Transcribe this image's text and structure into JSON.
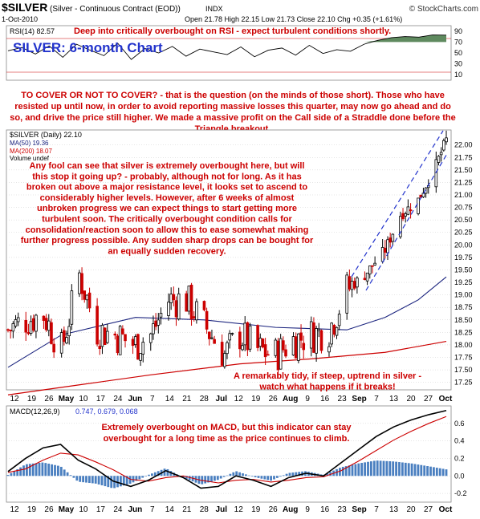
{
  "header": {
    "symbol": "$SILVER",
    "name": "(Silver - Continuous Contract (EOD))",
    "exchange": "INDX",
    "date": "1-Oct-2010",
    "ohlc": "Open 21.78  High 22.15  Low 21.73  Close 22.10  Chg +0.35 (+1.61%)",
    "brand": "© StockCharts.com"
  },
  "colors": {
    "up": "#000000",
    "down": "#cc0000",
    "ma50": "#1a237e",
    "ma200": "#cc0000",
    "channel": "#2233cc",
    "annotation_red": "#cc0000",
    "annotation_blue": "#2233cc",
    "rsi_fill": "#5f8a5f",
    "histogram": "#4a7fc0",
    "grid": "#cccccc"
  },
  "rsi_panel": {
    "label": "RSI(14) 82.57",
    "annotation": "Deep into critically overbought on RSI - expect turbulent conditions shortly.",
    "title": "SILVER: 6-month Chart",
    "ticks": [
      "90",
      "70",
      "50",
      "30",
      "10"
    ]
  },
  "main_text": "TO COVER OR NOT TO COVER? - that is the question (on the minds of those short). Those who have resisted up until now, in order to avoid reporting massive losses this quarter, may now go ahead and do so, and drive the price still higher. We made a massive profit on the Call side of a Straddle done before the Triangle breakout.",
  "price_panel": {
    "legend": {
      "series": "$SILVER (Daily) 22.10",
      "ma50": "MA(50) 19.36",
      "ma200": "MA(200) 18.07",
      "volume": "Volume undef"
    },
    "commentary": "Any fool can see that silver is extremely overbought here, but will this stop it going up? - probably, although not for long. As it has broken out above a major resistance level, it looks set to ascend to considerably higher levels. However, after 6 weeks of almost unbroken progress we can expect things to start getting more turbulent soon. The critically overbought condition calls for consolidation/reaction soon to allow this to ease somewhat making further progress possible. Any sudden sharp drops can be bought for an equally sudden recovery.",
    "uptrend_note": "A remarkably tidy, if steep, uptrend in silver - watch what happens if it breaks!",
    "ticks": [
      "22.00",
      "21.75",
      "21.50",
      "21.25",
      "21.00",
      "20.75",
      "20.50",
      "20.25",
      "20.00",
      "19.75",
      "19.50",
      "19.25",
      "19.00",
      "18.75",
      "18.50",
      "18.25",
      "18.00",
      "17.75",
      "17.50",
      "17.25"
    ]
  },
  "x_labels": [
    "12",
    "19",
    "26",
    "May",
    "10",
    "17",
    "24",
    "Jun",
    "7",
    "14",
    "21",
    "28",
    "Jul",
    "12",
    "19",
    "26",
    "Aug",
    "9",
    "16",
    "23",
    "Sep",
    "7",
    "13",
    "20",
    "27",
    "Oct"
  ],
  "macd_panel": {
    "label": "MACD(12,26,9)",
    "values": "0.747, 0.679, 0.068",
    "annotation": "Extremely overbought on MACD, but this indicator can stay overbought for a long time as the price continues to climb.",
    "ticks": [
      "0.6",
      "0.4",
      "0.2",
      "0.0",
      "-0.2"
    ]
  },
  "chart_data": {
    "type": "candlestick",
    "title": "SILVER: 6-month Chart",
    "x_range": [
      "2010-04-12",
      "2010-10-01"
    ],
    "price": {
      "ylim": [
        17.1,
        22.3
      ],
      "close_path": [
        {
          "date": "2010-04-12",
          "close": 18.3
        },
        {
          "date": "2010-04-19",
          "close": 18.5
        },
        {
          "date": "2010-04-26",
          "close": 18.6
        },
        {
          "date": "2010-05-03",
          "close": 17.9
        },
        {
          "date": "2010-05-10",
          "close": 19.4
        },
        {
          "date": "2010-05-17",
          "close": 18.3
        },
        {
          "date": "2010-05-24",
          "close": 18.2
        },
        {
          "date": "2010-06-01",
          "close": 18.0
        },
        {
          "date": "2010-06-07",
          "close": 18.2
        },
        {
          "date": "2010-06-14",
          "close": 18.9
        },
        {
          "date": "2010-06-21",
          "close": 18.9
        },
        {
          "date": "2010-06-28",
          "close": 18.4
        },
        {
          "date": "2010-07-06",
          "close": 17.8
        },
        {
          "date": "2010-07-12",
          "close": 18.2
        },
        {
          "date": "2010-07-19",
          "close": 17.9
        },
        {
          "date": "2010-07-26",
          "close": 17.8
        },
        {
          "date": "2010-08-02",
          "close": 18.1
        },
        {
          "date": "2010-08-09",
          "close": 18.2
        },
        {
          "date": "2010-08-16",
          "close": 18.3
        },
        {
          "date": "2010-08-23",
          "close": 19.1
        },
        {
          "date": "2010-08-30",
          "close": 19.4
        },
        {
          "date": "2010-09-07",
          "close": 19.9
        },
        {
          "date": "2010-09-13",
          "close": 20.6
        },
        {
          "date": "2010-09-20",
          "close": 20.9
        },
        {
          "date": "2010-09-27",
          "close": 21.6
        },
        {
          "date": "2010-10-01",
          "close": 22.1
        }
      ],
      "ma50": [
        {
          "date": "2010-04-12",
          "value": 17.55
        },
        {
          "date": "2010-05-03",
          "value": 18.2
        },
        {
          "date": "2010-06-01",
          "value": 18.55
        },
        {
          "date": "2010-06-28",
          "value": 18.5
        },
        {
          "date": "2010-07-26",
          "value": 18.35
        },
        {
          "date": "2010-08-23",
          "value": 18.3
        },
        {
          "date": "2010-09-07",
          "value": 18.55
        },
        {
          "date": "2010-09-20",
          "value": 18.9
        },
        {
          "date": "2010-10-01",
          "value": 19.36
        }
      ],
      "ma200": [
        {
          "date": "2010-04-12",
          "value": 17.0
        },
        {
          "date": "2010-05-10",
          "value": 17.2
        },
        {
          "date": "2010-06-07",
          "value": 17.4
        },
        {
          "date": "2010-07-12",
          "value": 17.62
        },
        {
          "date": "2010-08-09",
          "value": 17.72
        },
        {
          "date": "2010-09-07",
          "value": 17.85
        },
        {
          "date": "2010-10-01",
          "value": 18.07
        }
      ]
    },
    "rsi": {
      "ylim": [
        0,
        100
      ],
      "last": 82.57,
      "values": [
        54,
        60,
        48,
        63,
        42,
        66,
        55,
        45,
        68,
        38,
        58,
        50,
        62,
        44,
        57,
        52,
        47,
        61,
        43,
        55,
        59,
        46,
        64,
        49,
        56,
        53,
        66,
        73,
        78,
        80,
        79,
        83,
        82.57
      ]
    },
    "macd": {
      "ylim": [
        -0.3,
        0.8
      ],
      "macd": 0.747,
      "signal": 0.679,
      "histogram": 0.068,
      "macd_path": [
        0.05,
        0.2,
        0.32,
        0.36,
        0.18,
        0.08,
        -0.06,
        -0.12,
        -0.05,
        0.06,
        -0.02,
        -0.14,
        -0.12,
        0.0,
        -0.05,
        -0.12,
        -0.02,
        0.03,
        0.0,
        0.15,
        0.3,
        0.45,
        0.56,
        0.64,
        0.7,
        0.747
      ],
      "signal_path": [
        0.04,
        0.08,
        0.18,
        0.26,
        0.24,
        0.16,
        0.07,
        -0.04,
        -0.06,
        -0.02,
        0.0,
        -0.05,
        -0.08,
        -0.05,
        -0.04,
        -0.07,
        -0.05,
        -0.02,
        -0.01,
        0.06,
        0.17,
        0.29,
        0.41,
        0.51,
        0.6,
        0.679
      ]
    }
  }
}
